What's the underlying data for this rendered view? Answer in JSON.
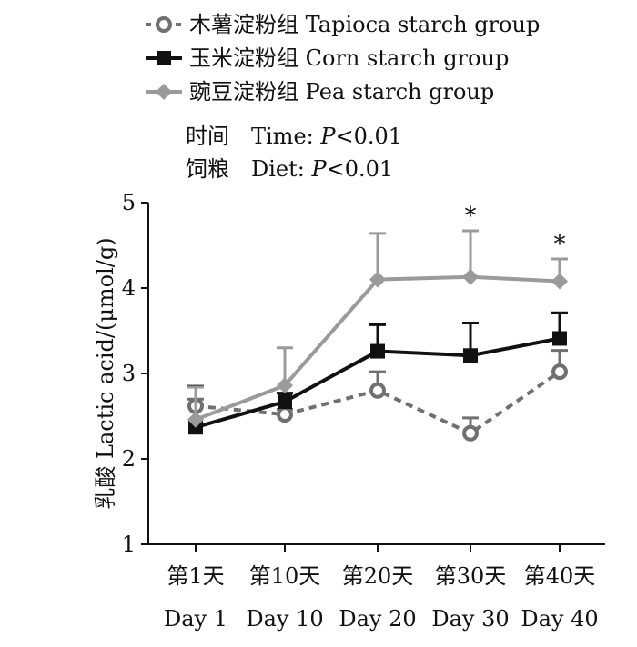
{
  "chart_data": {
    "type": "line",
    "title": "",
    "ylabel": "乳酸 Lactic acid/(μmol/g)",
    "xlabel": "",
    "ylim": [
      1,
      5
    ],
    "yticks": [
      "1",
      "2",
      "3",
      "4",
      "5"
    ],
    "categories": [
      "Day 1",
      "Day 10",
      "Day 20",
      "Day 30",
      "Day 40"
    ],
    "categories_cn": [
      "第1天",
      "第10天",
      "第20天",
      "第30天",
      "第40天"
    ],
    "grid": false,
    "legend_position": "top-left",
    "series": [
      {
        "name": "木薯淀粉组 Tapioca starch group",
        "line": "dashed",
        "marker": "open-circle",
        "color": "#707070",
        "values": [
          2.62,
          2.52,
          2.8,
          2.3,
          3.02
        ],
        "error": [
          0.08,
          0.06,
          0.22,
          0.18,
          0.25
        ]
      },
      {
        "name": "玉米淀粉组 Corn starch group",
        "line": "solid",
        "marker": "square",
        "color": "#111111",
        "values": [
          2.37,
          2.67,
          3.26,
          3.21,
          3.41
        ],
        "error": [
          0.48,
          0.1,
          0.31,
          0.38,
          0.3
        ]
      },
      {
        "name": "豌豆淀粉组 Pea starch group",
        "line": "solid",
        "marker": "diamond",
        "color": "#9a9a9a",
        "values": [
          2.46,
          2.86,
          4.1,
          4.13,
          4.08
        ],
        "error": [
          0.38,
          0.44,
          0.54,
          0.54,
          0.26
        ]
      }
    ],
    "significance": [
      {
        "category": "Day 30",
        "label": "*"
      },
      {
        "category": "Day 40",
        "label": "*"
      }
    ],
    "stats": {
      "time": {
        "cn": "时间",
        "label": "Time: ",
        "p": "P",
        "rest": "<0.01"
      },
      "diet": {
        "cn": "饲粮",
        "label": "Diet: ",
        "p": "P",
        "rest": "<0.01"
      }
    }
  }
}
